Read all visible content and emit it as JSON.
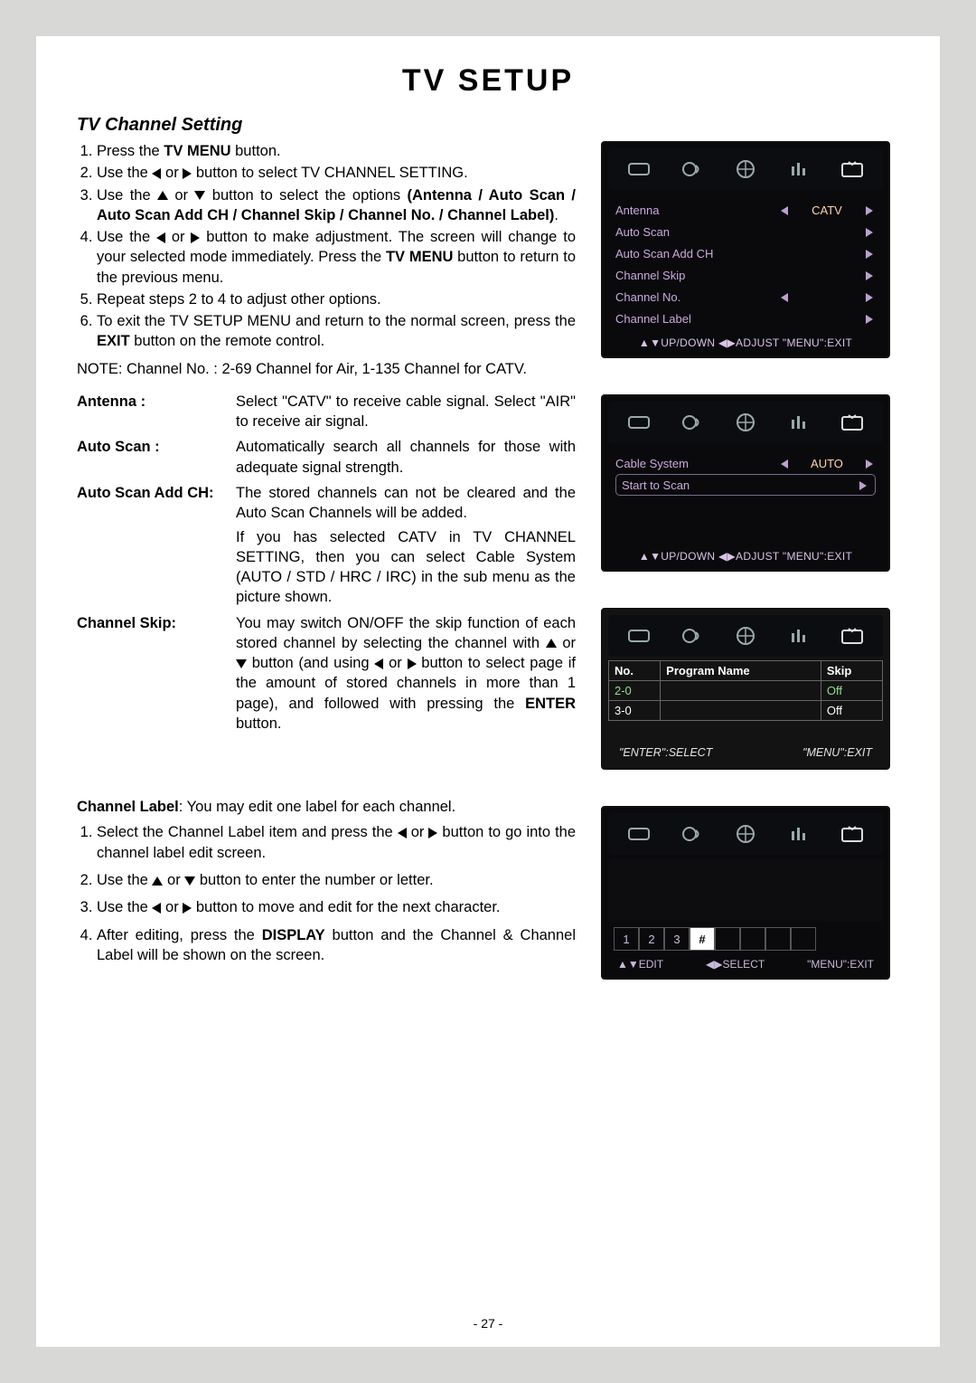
{
  "page": {
    "title": "TV SETUP",
    "subtitle": "TV Channel Setting",
    "page_number": "- 27 -",
    "background_color": "#d8d8d6"
  },
  "steps": {
    "s1_a": "Press the ",
    "s1_b": "TV MENU",
    "s1_c": " button.",
    "s2_a": "Use the ",
    "s2_b": " or ",
    "s2_c": " button to select TV CHANNEL SETTING.",
    "s3_a": "Use the ",
    "s3_b": " or ",
    "s3_c": " button to select the options ",
    "s3_bold": "(Antenna / Auto Scan / Auto Scan Add CH / Channel Skip / Channel No. / Channel Label)",
    "s3_d": ".",
    "s4_a": "Use the ",
    "s4_b": " or ",
    "s4_c": " button to make adjustment. The screen will change to your selected mode immediately. Press the ",
    "s4_bold": "TV MENU",
    "s4_d": " button to return to the previous menu.",
    "s5": "Repeat steps 2 to 4 to adjust other options.",
    "s6_a": "To exit the TV SETUP MENU and return to the normal screen, press the ",
    "s6_bold": "EXIT",
    "s6_b": " button on the remote control."
  },
  "note": "NOTE: Channel No. : 2-69 Channel for Air, 1-135 Channel for CATV.",
  "defs": {
    "antenna_term": "Antenna :",
    "antenna_text": "Select \"CATV\" to receive cable signal. Select \"AIR\" to receive air signal.",
    "autoscan_term": "Auto Scan :",
    "autoscan_text": "Automatically search all channels for those with adequate signal strength.",
    "add_term": "Auto Scan Add CH:",
    "add_text1": "The stored channels can not be cleared and the Auto Scan Channels will be added.",
    "add_text2": "If you has selected CATV in TV CHANNEL SETTING, then you can select Cable System (AUTO / STD / HRC / IRC) in the sub menu as the picture shown.",
    "skip_term": "Channel Skip:",
    "skip_text_a": "You may switch ON/OFF the skip function of each stored channel by selecting the channel with ",
    "skip_text_b": " or ",
    "skip_text_c": " button (and using ",
    "skip_text_d": " or ",
    "skip_text_e": " button to select page if the amount of stored channels in more than 1 page), and followed with pressing the ",
    "skip_bold": "ENTER",
    "skip_text_f": " button."
  },
  "channel_label": {
    "intro_bold": "Channel Label",
    "intro_text": ": You may edit one label for each channel.",
    "cl1_a": "Select the Channel Label item and press the ",
    "cl1_b": " or ",
    "cl1_c": " button to go into the channel label edit screen.",
    "cl2_a": "Use the ",
    "cl2_b": " or ",
    "cl2_c": " button to enter the number or letter.",
    "cl3_a": "Use the ",
    "cl3_b": " or ",
    "cl3_c": " button to move and edit for the next character.",
    "cl4_a": "After editing, press the ",
    "cl4_bold": "DISPLAY",
    "cl4_b": " button and the Channel & Channel Label will be shown on the screen."
  },
  "osd1": {
    "rows": [
      {
        "label": "Antenna",
        "value": "CATV",
        "arrows": "both"
      },
      {
        "label": "Auto Scan",
        "value": "",
        "arrows": "right"
      },
      {
        "label": "Auto Scan Add CH",
        "value": "",
        "arrows": "right"
      },
      {
        "label": "Channel Skip",
        "value": "",
        "arrows": "right"
      },
      {
        "label": "Channel No.",
        "value": "",
        "arrows": "both"
      },
      {
        "label": "Channel Label",
        "value": "",
        "arrows": "right"
      }
    ],
    "foot": "▲▼UP/DOWN  ◀▶ADJUST  \"MENU\":EXIT",
    "label_color": "#caa9dc",
    "value_color": "#ffd3b0",
    "bg": "#0a0a0c"
  },
  "osd2": {
    "rows": [
      {
        "label": "Cable System",
        "value": "AUTO",
        "arrows": "both",
        "boxed": false
      },
      {
        "label": "Start to Scan",
        "value": "",
        "arrows": "right",
        "boxed": true
      }
    ],
    "foot": "▲▼UP/DOWN  ◀▶ADJUST  \"MENU\":EXIT"
  },
  "osd3": {
    "headers": [
      "No.",
      "Program Name",
      "Skip"
    ],
    "rows": [
      {
        "no": "2-0",
        "name": "",
        "skip": "Off",
        "selected": true
      },
      {
        "no": "3-0",
        "name": "",
        "skip": "Off",
        "selected": false
      }
    ],
    "foot_left": "\"ENTER\":SELECT",
    "foot_right": "\"MENU\":EXIT"
  },
  "osd4": {
    "cells": [
      "1",
      "2",
      "3",
      "#",
      "",
      "",
      "",
      ""
    ],
    "active_index": 3,
    "foot_left": "▲▼EDIT",
    "foot_mid": "◀▶SELECT",
    "foot_right": "\"MENU\":EXIT"
  }
}
